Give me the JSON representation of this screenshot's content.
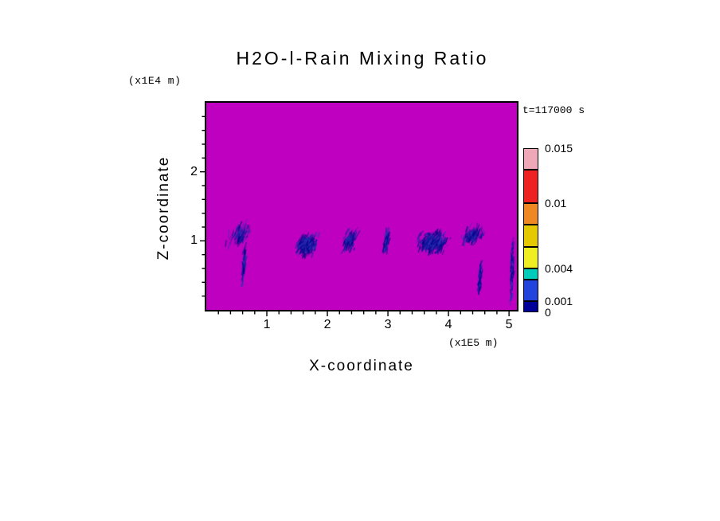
{
  "chart_data": {
    "type": "heatmap",
    "title": "H2O-l-Rain Mixing Ratio",
    "timestamp": "t=117000 s",
    "xlabel": "X-coordinate",
    "ylabel": "Z-coordinate",
    "x_units": "(x1E5 m)",
    "y_units": "(x1E4 m)",
    "xlim": [
      0,
      5.13
    ],
    "ylim": [
      0,
      3.0
    ],
    "x_ticks": [
      1,
      2,
      3,
      4,
      5
    ],
    "y_ticks": [
      1,
      2
    ],
    "x_minor_step": 0.2,
    "y_minor_step": 0.2,
    "background_color": "#C000C0",
    "feature_colors": [
      "#000085",
      "#15159E",
      "#3030B8"
    ],
    "features": [
      {
        "cx": 0.55,
        "cz": 1.1,
        "rx": 0.22,
        "rz": 0.18,
        "n": 110,
        "ang": -1.2,
        "shear": 0.5,
        "len": 7,
        "alpha": 0.85
      },
      {
        "cx": 0.62,
        "cz": 0.65,
        "rx": 0.04,
        "rz": 0.35,
        "n": 55,
        "ang": -1.45,
        "shear": 0.12,
        "len": 8,
        "alpha": 1
      },
      {
        "cx": 1.66,
        "cz": 0.95,
        "rx": 0.2,
        "rz": 0.2,
        "n": 300,
        "ang": -1.1,
        "shear": 0.1,
        "len": 6,
        "alpha": 1
      },
      {
        "cx": 2.37,
        "cz": 1.0,
        "rx": 0.14,
        "rz": 0.2,
        "n": 110,
        "ang": -1.2,
        "shear": 0.35,
        "len": 7,
        "alpha": 0.95
      },
      {
        "cx": 2.98,
        "cz": 1.0,
        "rx": 0.06,
        "rz": 0.22,
        "n": 70,
        "ang": -1.4,
        "shear": 0.15,
        "len": 7,
        "alpha": 1
      },
      {
        "cx": 3.75,
        "cz": 0.98,
        "rx": 0.3,
        "rz": 0.2,
        "n": 330,
        "ang": -1.1,
        "shear": 0.08,
        "len": 6,
        "alpha": 1
      },
      {
        "cx": 4.4,
        "cz": 1.08,
        "rx": 0.22,
        "rz": 0.16,
        "n": 130,
        "ang": -1.15,
        "shear": 0.45,
        "len": 7,
        "alpha": 0.9
      },
      {
        "cx": 4.52,
        "cz": 0.45,
        "rx": 0.035,
        "rz": 0.3,
        "n": 55,
        "ang": -1.45,
        "shear": 0.1,
        "len": 8,
        "alpha": 1
      },
      {
        "cx": 5.05,
        "cz": 0.6,
        "rx": 0.03,
        "rz": 0.62,
        "n": 70,
        "ang": -1.5,
        "shear": 0.03,
        "len": 7,
        "alpha": 1
      }
    ],
    "colorbar": {
      "vmin": 0,
      "vmax": 0.015,
      "boundaries": [
        0,
        0.001,
        0.003,
        0.004,
        0.006,
        0.008,
        0.01,
        0.013,
        0.015
      ],
      "colors": [
        "#000099",
        "#2244DD",
        "#00CCBB",
        "#EEEE22",
        "#E6C800",
        "#EE8822",
        "#EE2222",
        "#EEA8B8"
      ],
      "labels": [
        {
          "value": 0.015,
          "text": "0.015"
        },
        {
          "value": 0.01,
          "text": "0.01"
        },
        {
          "value": 0.004,
          "text": "0.004"
        },
        {
          "value": 0.001,
          "text": "0.001"
        },
        {
          "value": 0,
          "text": "0"
        }
      ]
    }
  }
}
